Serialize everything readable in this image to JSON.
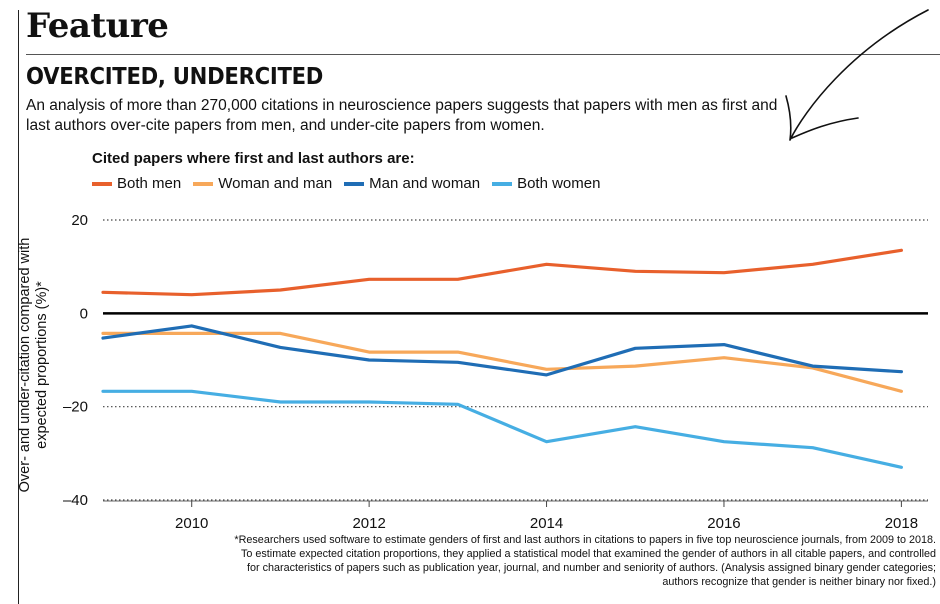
{
  "header": {
    "section": "Feature"
  },
  "article": {
    "headline": "OVERCITED, UNDERCITED",
    "intro": "An analysis of more than 270,000 citations in neuroscience papers suggests that papers with men as first and last authors over-cite papers from men, and under-cite papers from women."
  },
  "legend": {
    "title": "Cited papers where first and last authors are:",
    "items": [
      {
        "label": "Both men",
        "color": "#E8602C"
      },
      {
        "label": "Woman and man",
        "color": "#F7A85A"
      },
      {
        "label": "Man and woman",
        "color": "#1F6DB5"
      },
      {
        "label": "Both women",
        "color": "#46AEE3"
      }
    ]
  },
  "chart_data": {
    "type": "line",
    "ylabel": "Over- and under-citation compared with expected proportions (%)*",
    "xlabel": "",
    "x": [
      2009,
      2010,
      2011,
      2012,
      2013,
      2014,
      2015,
      2016,
      2017,
      2018
    ],
    "xlim": [
      2009,
      2018.3
    ],
    "ylim": [
      -40,
      20
    ],
    "x_ticks": [
      "2010",
      "2012",
      "2014",
      "2016",
      "2018"
    ],
    "y_ticks": [
      "20",
      "0",
      "–20",
      "–40"
    ],
    "grid": "dotted horizontal",
    "series": [
      {
        "name": "Both men",
        "color": "#E8602C",
        "values": [
          4.5,
          4.0,
          5.0,
          7.3,
          7.3,
          10.5,
          9.0,
          8.7,
          10.5,
          13.5
        ]
      },
      {
        "name": "Woman and man",
        "color": "#F7A85A",
        "values": [
          -4.3,
          -4.3,
          -4.3,
          -8.3,
          -8.3,
          -12.0,
          -11.3,
          -9.5,
          -11.7,
          -16.7
        ]
      },
      {
        "name": "Man and woman",
        "color": "#1F6DB5",
        "values": [
          -5.3,
          -2.7,
          -7.3,
          -10.0,
          -10.5,
          -13.2,
          -7.5,
          -6.7,
          -11.3,
          -12.5
        ]
      },
      {
        "name": "Both women",
        "color": "#46AEE3",
        "values": [
          -16.7,
          -16.7,
          -19.0,
          -19.0,
          -19.5,
          -27.5,
          -24.3,
          -27.5,
          -28.8,
          -33.0
        ]
      }
    ]
  },
  "footnote": "*Researchers used software to estimate genders of first and last authors in citations to papers in five top neuroscience journals, from 2009 to 2018. To estimate expected citation proportions, they applied a statistical model that examined the gender of authors in all citable papers, and controlled for characteristics of papers such as publication year, journal, and number and seniority of authors. (Analysis assigned binary gender categories; authors recognize that gender is neither binary nor fixed.)"
}
